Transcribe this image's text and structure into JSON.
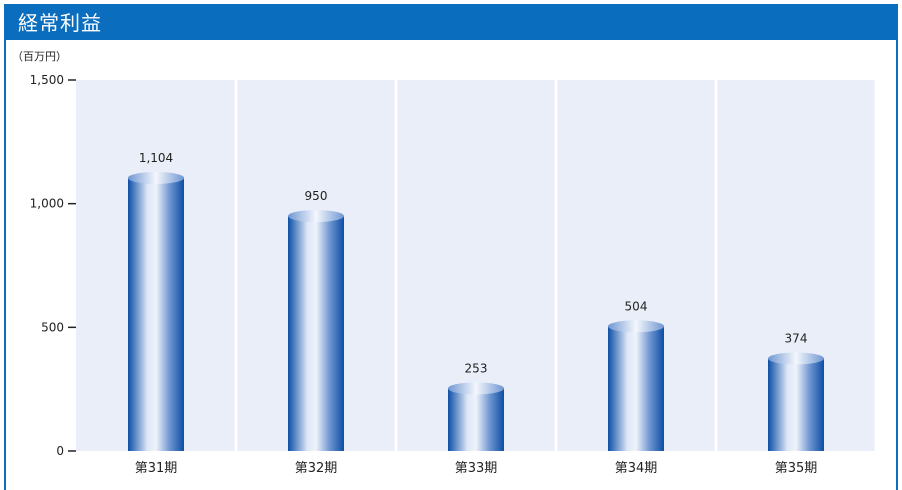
{
  "title": "経常利益",
  "unit_label": "（百万円）",
  "colors": {
    "header": "#0a6dbd",
    "plot_bg": "#e9eef8",
    "bar_dark": "#0d4fa6",
    "bar_light": "#eef3fb"
  },
  "chart_data": {
    "type": "bar",
    "title": "経常利益",
    "ylabel": "（百万円）",
    "xlabel": "",
    "categories": [
      "第31期",
      "第32期",
      "第33期",
      "第34期",
      "第35期"
    ],
    "values": [
      1104,
      950,
      253,
      504,
      374
    ],
    "value_labels": [
      "1,104",
      "950",
      "253",
      "504",
      "374"
    ],
    "ylim": [
      0,
      1500
    ],
    "yticks": [
      0,
      500,
      1000,
      1500
    ],
    "ytick_labels": [
      "0",
      "500",
      "1,000",
      "1,500"
    ],
    "grid": false,
    "legend": "none"
  }
}
